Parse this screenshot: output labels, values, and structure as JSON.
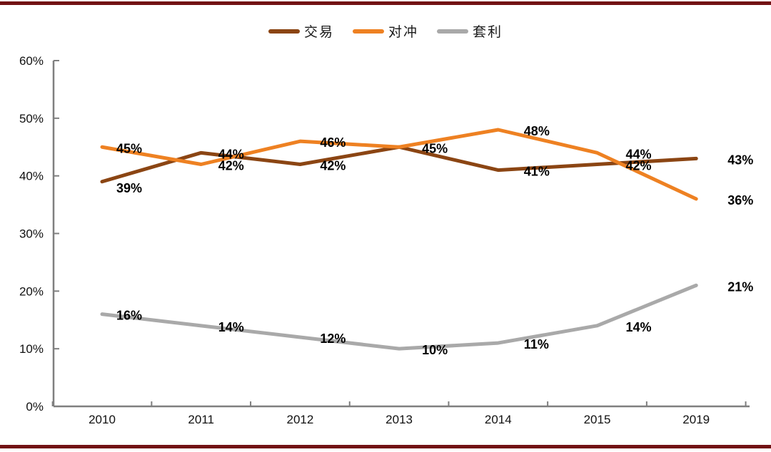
{
  "page": {
    "background": "#ffffff",
    "border_color": "#721114",
    "axis_color": "#7f7f7f",
    "text_color": "#111111"
  },
  "chart_data": {
    "type": "line",
    "title": "",
    "xlabel": "",
    "ylabel": "",
    "categories": [
      "2010",
      "2011",
      "2012",
      "2013",
      "2014",
      "2015",
      "2019"
    ],
    "series": [
      {
        "name": "交易",
        "color": "#8B4513",
        "values": [
          39,
          44,
          42,
          45,
          41,
          42,
          43
        ],
        "labels": [
          "39%",
          "44%",
          "42%",
          "45%",
          "41%",
          "42%",
          "43%"
        ]
      },
      {
        "name": "对冲",
        "color": "#EE8122",
        "values": [
          45,
          42,
          46,
          45,
          48,
          44,
          36
        ],
        "labels": [
          "45%",
          "42%",
          "46%",
          null,
          "48%",
          "44%",
          "36%"
        ]
      },
      {
        "name": "套利",
        "color": "#A9A9A9",
        "values": [
          16,
          14,
          12,
          10,
          11,
          14,
          21
        ],
        "labels": [
          "16%",
          "14%",
          "12%",
          "10%",
          "11%",
          "14%",
          "21%"
        ]
      }
    ],
    "y_ticks": [
      "60%",
      "50%",
      "40%",
      "30%",
      "20%",
      "10%",
      "0%"
    ],
    "ylim": [
      0,
      60
    ],
    "grid": false,
    "legend_position": "top-center"
  }
}
